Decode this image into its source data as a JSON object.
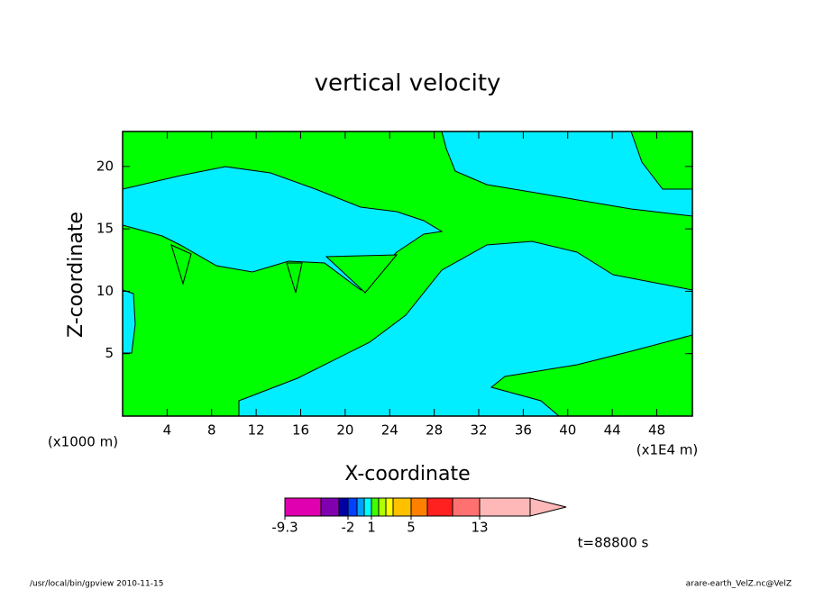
{
  "chart_data": {
    "type": "contour",
    "title": "vertical velocity",
    "x_label": "X-coordinate",
    "y_label": "Z-coordinate",
    "x_unit": "(x1E4 m)",
    "y_unit": "(x1000 m)",
    "xlim": [
      0,
      51.2
    ],
    "xticks": [
      4,
      8,
      12,
      16,
      20,
      24,
      28,
      32,
      36,
      40,
      44,
      48
    ],
    "ylim": [
      0,
      22.8
    ],
    "yticks": [
      5,
      10,
      15,
      20
    ],
    "colorbar": {
      "colors": [
        "#e000b0",
        "#8000b0",
        "#0000a0",
        "#0040ff",
        "#00a0ff",
        "#00ffff",
        "#40ff00",
        "#b0ff00",
        "#ffff00",
        "#ffc000",
        "#ff8000",
        "#ff2020",
        "#ff7070",
        "#ffb8b8"
      ],
      "ticks": [
        -9.3,
        -2,
        1,
        5,
        13
      ]
    },
    "time_label": "t=88800 s",
    "footer_left": "/usr/local/bin/gpview  2010-11-15",
    "footer_right": "arare-earth_VelZ.nc@VelZ"
  }
}
